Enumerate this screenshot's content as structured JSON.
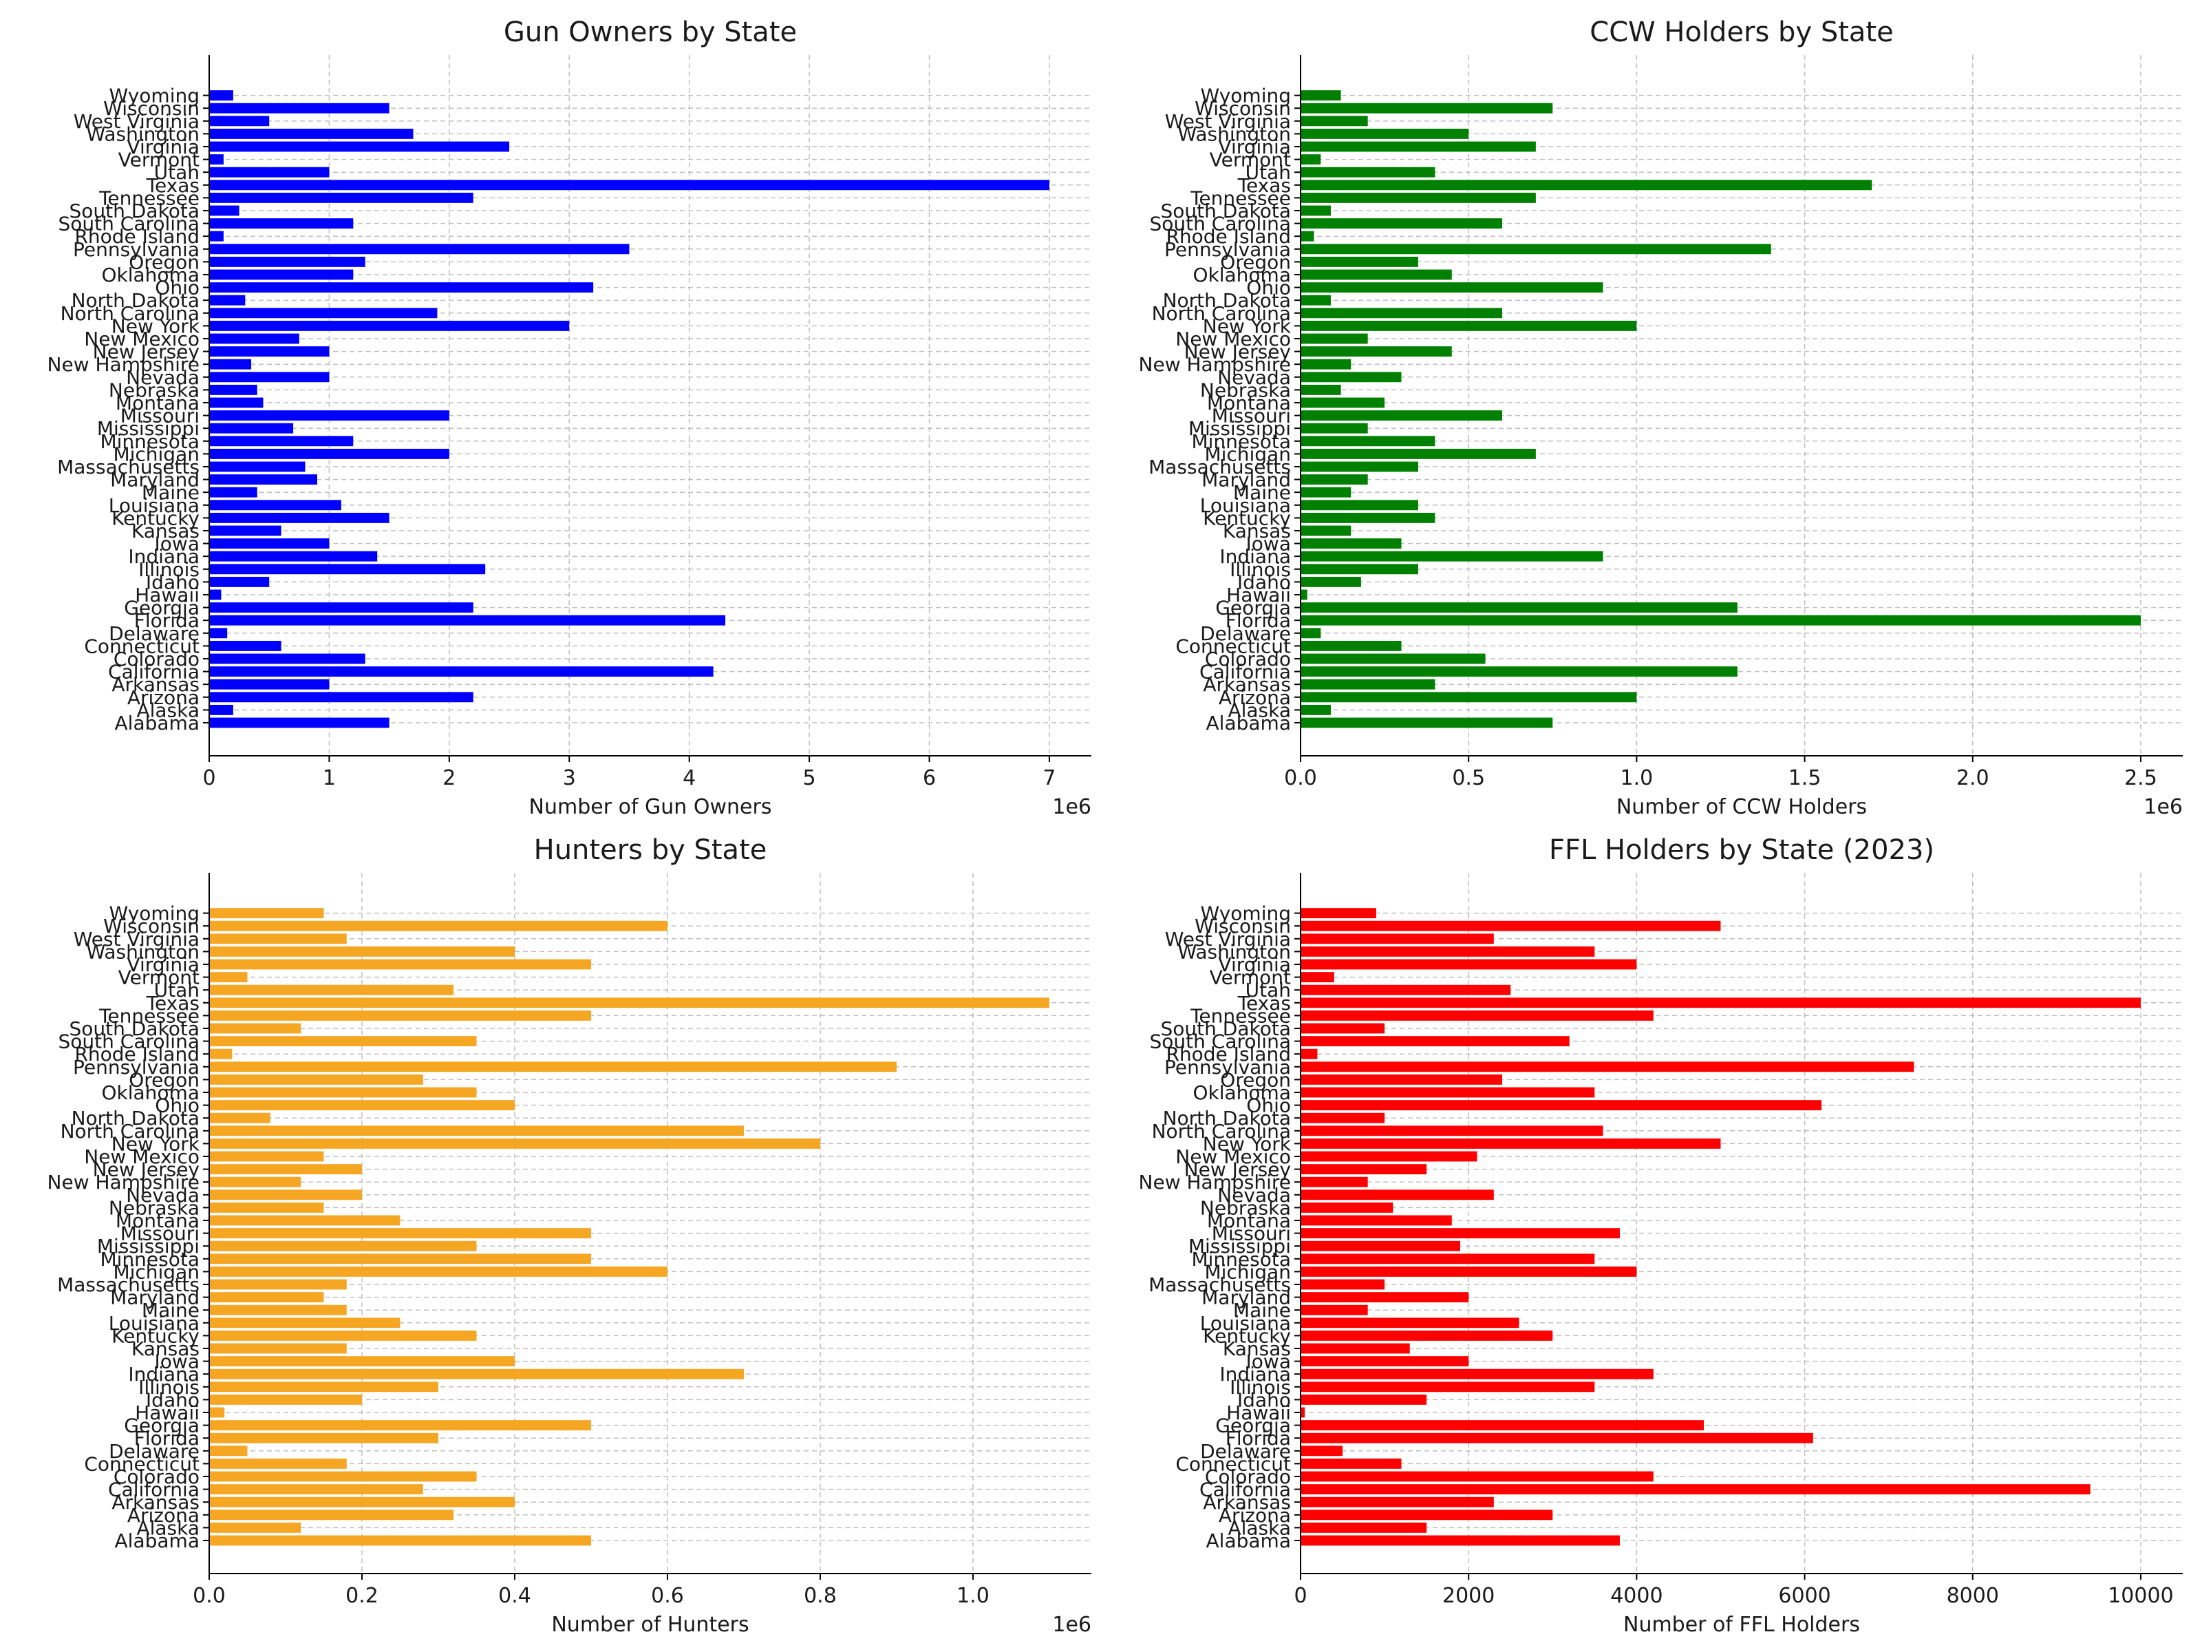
{
  "states": [
    "Alabama",
    "Alaska",
    "Arizona",
    "Arkansas",
    "California",
    "Colorado",
    "Connecticut",
    "Delaware",
    "Florida",
    "Georgia",
    "Hawaii",
    "Idaho",
    "Illinois",
    "Indiana",
    "Iowa",
    "Kansas",
    "Kentucky",
    "Louisiana",
    "Maine",
    "Maryland",
    "Massachusetts",
    "Michigan",
    "Minnesota",
    "Mississippi",
    "Missouri",
    "Montana",
    "Nebraska",
    "Nevada",
    "New Hampshire",
    "New Jersey",
    "New Mexico",
    "New York",
    "North Carolina",
    "North Dakota",
    "Ohio",
    "Oklahoma",
    "Oregon",
    "Pennsylvania",
    "Rhode Island",
    "South Carolina",
    "South Dakota",
    "Tennessee",
    "Texas",
    "Utah",
    "Vermont",
    "Virginia",
    "Washington",
    "West Virginia",
    "Wisconsin",
    "Wyoming"
  ],
  "chart_data": [
    {
      "type": "bar",
      "orientation": "horizontal",
      "title": "Gun Owners by State",
      "xlabel": "Number of Gun Owners",
      "ylabel": "",
      "offset_label": "1e6",
      "scale": 1000000,
      "xlim": [
        0,
        7350000
      ],
      "xticks": [
        0,
        1000000,
        2000000,
        3000000,
        4000000,
        5000000,
        6000000,
        7000000
      ],
      "tick_labels": [
        "0",
        "1",
        "2",
        "3",
        "4",
        "5",
        "6",
        "7"
      ],
      "color": "#0000ff",
      "grid": true,
      "values": [
        1500000,
        200000,
        2200000,
        1000000,
        4200000,
        1300000,
        600000,
        150000,
        4300000,
        2200000,
        100000,
        500000,
        2300000,
        1400000,
        1000000,
        600000,
        1500000,
        1100000,
        400000,
        900000,
        800000,
        2000000,
        1200000,
        700000,
        2000000,
        450000,
        400000,
        1000000,
        350000,
        1000000,
        750000,
        3000000,
        1900000,
        300000,
        3200000,
        1200000,
        1300000,
        3500000,
        120000,
        1200000,
        250000,
        2200000,
        7000000,
        1000000,
        120000,
        2500000,
        1700000,
        500000,
        1500000,
        200000
      ]
    },
    {
      "type": "bar",
      "orientation": "horizontal",
      "title": "CCW Holders by State",
      "xlabel": "Number of CCW Holders",
      "ylabel": "",
      "offset_label": "1e6",
      "scale": 1000000,
      "xlim": [
        0,
        2625000
      ],
      "xticks": [
        0,
        500000,
        1000000,
        1500000,
        2000000,
        2500000
      ],
      "tick_labels": [
        "0.0",
        "0.5",
        "1.0",
        "1.5",
        "2.0",
        "2.5"
      ],
      "color": "#008000",
      "grid": true,
      "values": [
        750000,
        90000,
        1000000,
        400000,
        1300000,
        550000,
        300000,
        60000,
        2500000,
        1300000,
        20000,
        180000,
        350000,
        900000,
        300000,
        150000,
        400000,
        350000,
        150000,
        200000,
        350000,
        700000,
        400000,
        200000,
        600000,
        250000,
        120000,
        300000,
        150000,
        450000,
        200000,
        1000000,
        600000,
        90000,
        900000,
        450000,
        350000,
        1400000,
        40000,
        600000,
        90000,
        700000,
        1700000,
        400000,
        60000,
        700000,
        500000,
        200000,
        750000,
        120000
      ]
    },
    {
      "type": "bar",
      "orientation": "horizontal",
      "title": "Hunters by State",
      "xlabel": "Number of Hunters",
      "ylabel": "",
      "offset_label": "1e6",
      "scale": 1000000,
      "xlim": [
        0,
        1155000
      ],
      "xticks": [
        0,
        200000,
        400000,
        600000,
        800000,
        1000000
      ],
      "tick_labels": [
        "0.0",
        "0.2",
        "0.4",
        "0.6",
        "0.8",
        "1.0"
      ],
      "color": "#f5a623",
      "grid": true,
      "values": [
        500000,
        120000,
        320000,
        400000,
        280000,
        350000,
        180000,
        50000,
        300000,
        500000,
        20000,
        200000,
        300000,
        700000,
        400000,
        180000,
        350000,
        250000,
        180000,
        150000,
        180000,
        600000,
        500000,
        350000,
        500000,
        250000,
        150000,
        200000,
        120000,
        200000,
        150000,
        800000,
        700000,
        80000,
        400000,
        350000,
        280000,
        900000,
        30000,
        350000,
        120000,
        500000,
        1100000,
        320000,
        50000,
        500000,
        400000,
        180000,
        600000,
        150000
      ]
    },
    {
      "type": "bar",
      "orientation": "horizontal",
      "title": "FFL Holders by State (2023)",
      "xlabel": "Number of FFL Holders",
      "ylabel": "",
      "offset_label": "",
      "scale": 1,
      "xlim": [
        0,
        10500
      ],
      "xticks": [
        0,
        2000,
        4000,
        6000,
        8000,
        10000
      ],
      "tick_labels": [
        "0",
        "2000",
        "4000",
        "6000",
        "8000",
        "10000"
      ],
      "color": "#ff0000",
      "grid": true,
      "values": [
        3800,
        1500,
        3000,
        2300,
        9400,
        4200,
        1200,
        500,
        6100,
        4800,
        50,
        1500,
        3500,
        4200,
        2000,
        1300,
        3000,
        2600,
        800,
        2000,
        1000,
        4000,
        3500,
        1900,
        3800,
        1800,
        1100,
        2300,
        800,
        1500,
        2100,
        5000,
        3600,
        1000,
        6200,
        3500,
        2400,
        7300,
        200,
        3200,
        1000,
        4200,
        10000,
        2500,
        400,
        4000,
        3500,
        2300,
        5000,
        900
      ]
    }
  ]
}
